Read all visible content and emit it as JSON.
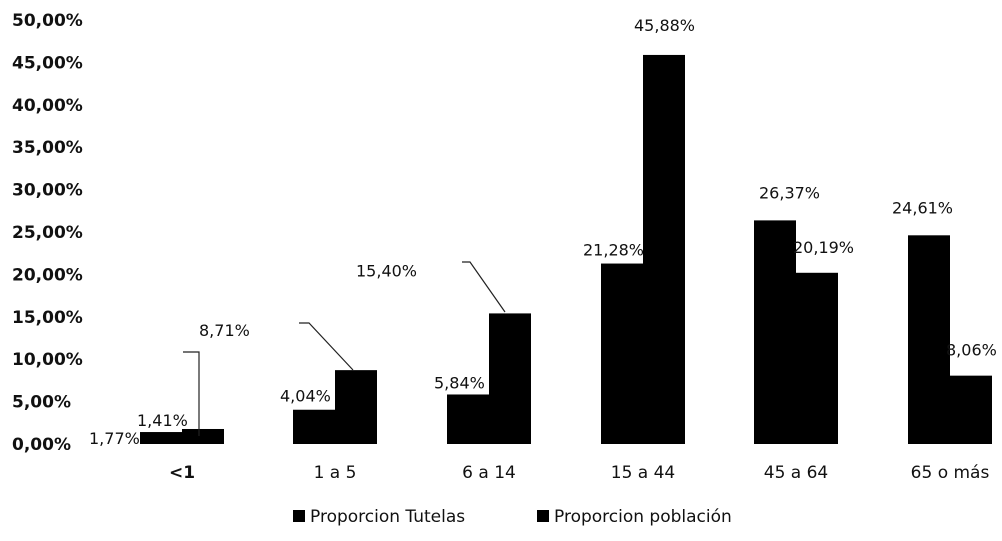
{
  "chart_data": {
    "type": "bar",
    "categories": [
      "<1",
      "1 a 5",
      "6 a 14",
      "15 a 44",
      "45 a 64",
      "65 o más"
    ],
    "series": [
      {
        "name": "Proporcion Tutelas",
        "values": [
          1.41,
          4.04,
          5.84,
          21.28,
          26.37,
          24.61
        ],
        "labels": [
          "1,41%",
          "4,04%",
          "5,84%",
          "21,28%",
          "26,37%",
          "24,61%"
        ],
        "color": "#000000"
      },
      {
        "name": "Proporcion población",
        "values": [
          1.77,
          8.71,
          15.4,
          45.88,
          20.19,
          8.06
        ],
        "labels": [
          "1,77%",
          "8,71%",
          "15,40%",
          "45,88%",
          "20,19%",
          "8,06%"
        ],
        "color": "#000000"
      }
    ],
    "y_ticks": [
      "0,00%",
      "5,00%",
      "10,00%",
      "15,00%",
      "20,00%",
      "25,00%",
      "30,00%",
      "35,00%",
      "40,00%",
      "45,00%",
      "50,00%"
    ],
    "ylim": [
      0,
      50
    ],
    "title": "",
    "xlabel": "",
    "ylabel": "",
    "grid": false,
    "legend_position": "bottom-center"
  }
}
